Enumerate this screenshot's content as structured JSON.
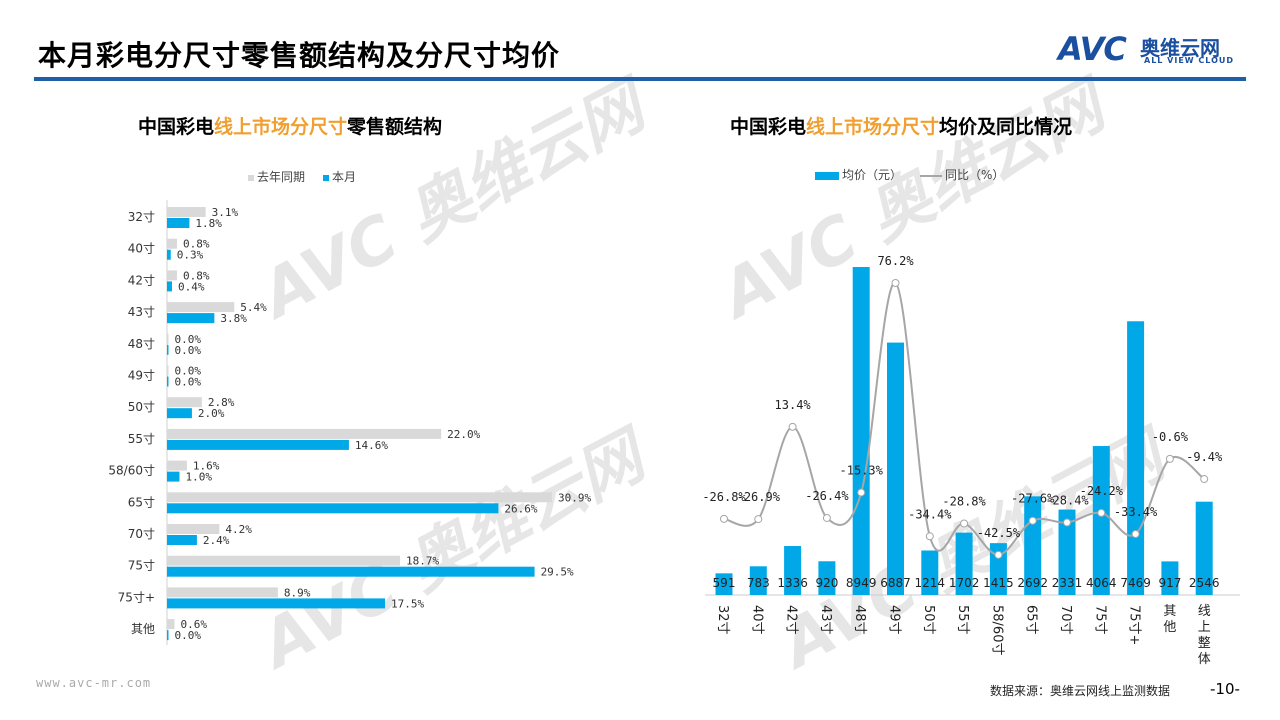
{
  "header": {
    "title": "本月彩电分尺寸零售额结构及分尺寸均价",
    "logo_mark": "AVC",
    "logo_cn": "奥维云网",
    "logo_en": "ALL VIEW CLOUD"
  },
  "footer": {
    "url": "www.avc-mr.com",
    "source": "数据来源：奥维云网线上监测数据",
    "page": "-10-"
  },
  "colors": {
    "accent": "#00a8e8",
    "last_year": "#d9d9d9",
    "line": "#a6a6a6",
    "highlight": "#f0a030",
    "rule": "#1f5fa8"
  },
  "chart_data": [
    {
      "type": "bar",
      "orientation": "horizontal",
      "title_parts": [
        "中国彩电",
        "线上市场分尺寸",
        "零售额结构"
      ],
      "categories": [
        "32寸",
        "40寸",
        "42寸",
        "43寸",
        "48寸",
        "49寸",
        "50寸",
        "55寸",
        "58/60寸",
        "65寸",
        "70寸",
        "75寸",
        "75寸+",
        "其他"
      ],
      "series": [
        {
          "name": "去年同期",
          "values": [
            3.1,
            0.8,
            0.8,
            5.4,
            0.0,
            0.0,
            2.8,
            22.0,
            1.6,
            30.9,
            4.2,
            18.7,
            8.9,
            0.6
          ],
          "labels": [
            "3.1%",
            "0.8%",
            "0.8%",
            "5.4%",
            "0.0%",
            "0.0%",
            "2.8%",
            "22.0%",
            "1.6%",
            "30.9%",
            "4.2%",
            "18.7%",
            "8.9%",
            "0.6%"
          ]
        },
        {
          "name": "本月",
          "values": [
            1.8,
            0.3,
            0.4,
            3.8,
            0.0,
            0.0,
            2.0,
            14.6,
            1.0,
            26.6,
            2.4,
            29.5,
            17.5,
            0.0
          ],
          "labels": [
            "1.8%",
            "0.3%",
            "0.4%",
            "3.8%",
            "0.0%",
            "0.0%",
            "2.0%",
            "14.6%",
            "1.0%",
            "26.6%",
            "2.4%",
            "29.5%",
            "17.5%",
            "0.0%"
          ]
        }
      ],
      "unit": "%",
      "legend": "top"
    },
    {
      "type": "bar+line",
      "title_parts": [
        "中国彩电",
        "线上市场分尺寸",
        "均价及同比情况"
      ],
      "categories": [
        "32寸",
        "40寸",
        "42寸",
        "43寸",
        "48寸",
        "49寸",
        "50寸",
        "55寸",
        "58/60寸",
        "65寸",
        "70寸",
        "75寸",
        "75寸+",
        "其他",
        "线上整体"
      ],
      "series": [
        {
          "name": "均价（元）",
          "type": "bar",
          "values": [
            591,
            783,
            1336,
            920,
            8949,
            6887,
            1214,
            1702,
            1415,
            2692,
            2331,
            4064,
            7469,
            917,
            2546
          ],
          "labels": [
            "591",
            "783",
            "1336",
            "920",
            "8949",
            "6887",
            "1214",
            "1702",
            "1415",
            "2692",
            "2331",
            "4064",
            "7469",
            "917",
            "2546"
          ]
        },
        {
          "name": "同比（%）",
          "type": "line",
          "values": [
            -26.8,
            -26.9,
            13.4,
            -26.4,
            -15.3,
            76.2,
            -34.4,
            -28.8,
            -42.5,
            -27.6,
            -28.4,
            -24.2,
            -33.4,
            -0.6,
            -9.4
          ],
          "labels": [
            "-26.8%",
            "-26.9%",
            "13.4%",
            "-26.4%",
            "-15.3%",
            "76.2%",
            "-34.4%",
            "-28.8%",
            "-42.5%",
            "-27.6%",
            "-28.4%",
            "-24.2%",
            "-33.4%",
            "-0.6%",
            "-9.4%"
          ]
        }
      ],
      "legend": "top"
    }
  ]
}
